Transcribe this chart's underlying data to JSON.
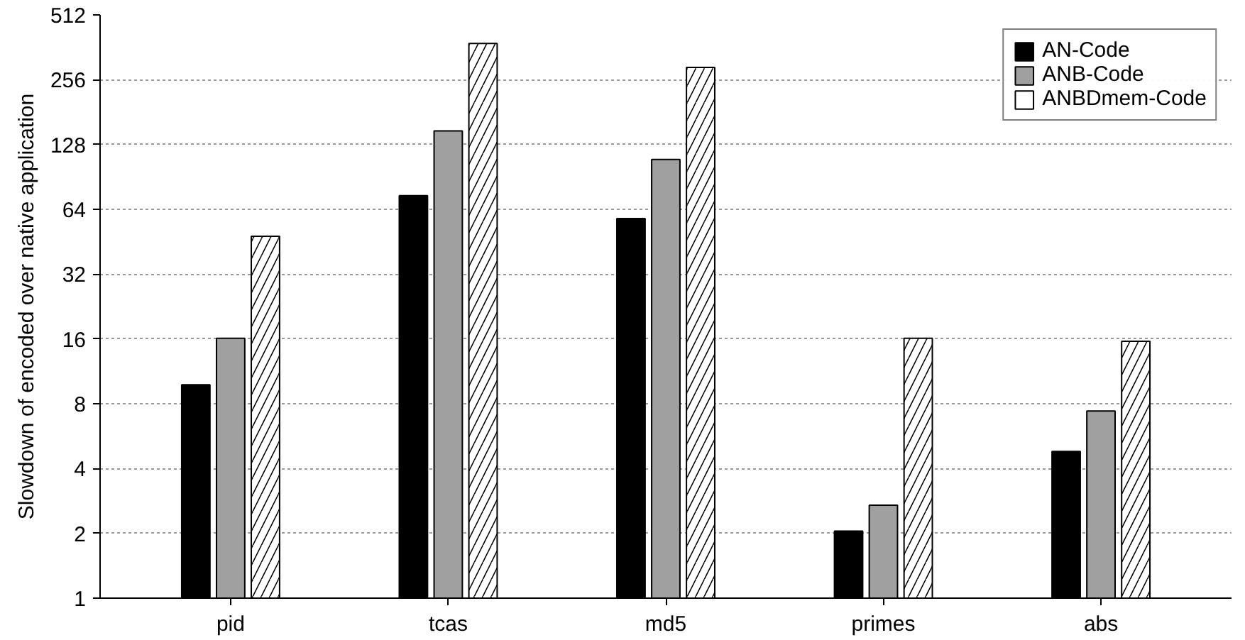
{
  "chart_data": {
    "type": "bar",
    "ylabel": "Slowdown of encoded over native application",
    "categories": [
      "pid",
      "tcas",
      "md5",
      "primes",
      "abs"
    ],
    "series": [
      {
        "name": "AN-Code",
        "color": "#000000",
        "values": [
          9.8,
          74,
          58,
          2.05,
          4.8
        ]
      },
      {
        "name": "ANB-Code",
        "color": "#a0a0a0",
        "values": [
          16.1,
          148,
          109,
          2.7,
          7.4
        ]
      },
      {
        "name": "ANBDmem-Code",
        "color": "#ffffff",
        "values": [
          48,
          377,
          292,
          16.1,
          15.6
        ]
      }
    ],
    "log": "y",
    "ylim": [
      1,
      512
    ],
    "yticks": [
      1,
      2,
      4,
      8,
      16,
      32,
      64,
      128,
      256,
      512
    ],
    "grid": "y",
    "legend": "top right"
  }
}
